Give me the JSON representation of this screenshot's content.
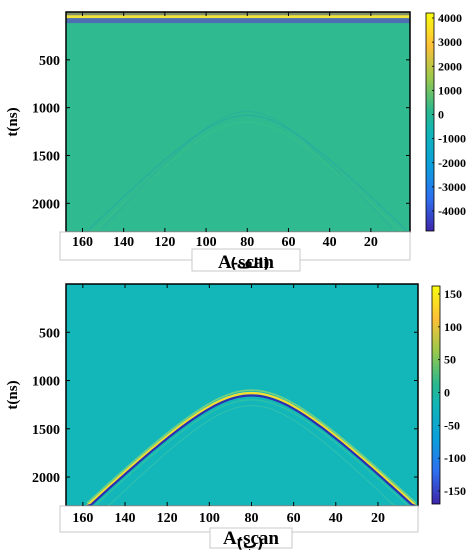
{
  "chart_data": [
    {
      "id": "panel-a",
      "type": "heatmap",
      "caption": "(الف)",
      "title": "",
      "xlabel": "A-scan",
      "ylabel": "t(ns)",
      "x_ticks": [
        160,
        140,
        120,
        100,
        80,
        60,
        40,
        20
      ],
      "y_ticks": [
        500,
        1000,
        1500,
        2000
      ],
      "xlim": [
        168,
        1
      ],
      "ylim": [
        0,
        2300
      ],
      "x_reversed": true,
      "y_reversed": true,
      "colorbar_ticks": [
        "4000",
        "3000",
        "2000",
        "1000",
        "0",
        "-1000",
        "-2000",
        "-3000",
        "-4000"
      ],
      "colorbar_range": [
        -4500,
        4500
      ],
      "colormap": "parula",
      "background_value": 0,
      "background_color": "#2fba8f",
      "direct_wave": {
        "t_ns": [
          20,
          60,
          90
        ],
        "colors": [
          "#7e8f6a",
          "#f2e23a",
          "#4d6fb0"
        ]
      },
      "hyperbola": {
        "apex_ascan": 80,
        "apex_t_ns": 1080,
        "end_t_ns": 2300,
        "faint": true
      }
    },
    {
      "id": "panel-b",
      "type": "heatmap",
      "caption": "(ب)",
      "title": "",
      "xlabel": "A-scan",
      "ylabel": "t(ns)",
      "x_ticks": [
        160,
        140,
        120,
        100,
        80,
        60,
        40,
        20
      ],
      "y_ticks": [
        500,
        1000,
        1500,
        2000
      ],
      "xlim": [
        168,
        1
      ],
      "ylim": [
        0,
        2300
      ],
      "x_reversed": true,
      "y_reversed": true,
      "colorbar_ticks": [
        "150",
        "100",
        "50",
        "0",
        "-50",
        "-100",
        "-150"
      ],
      "colorbar_range": [
        -170,
        170
      ],
      "colormap": "parula",
      "background_value": 0,
      "background_color": "#13b7b9",
      "hyperbola": {
        "apex_ascan": 80,
        "apex_t_ns": 1130,
        "end_t_ns": 2300,
        "faint": false
      }
    }
  ]
}
